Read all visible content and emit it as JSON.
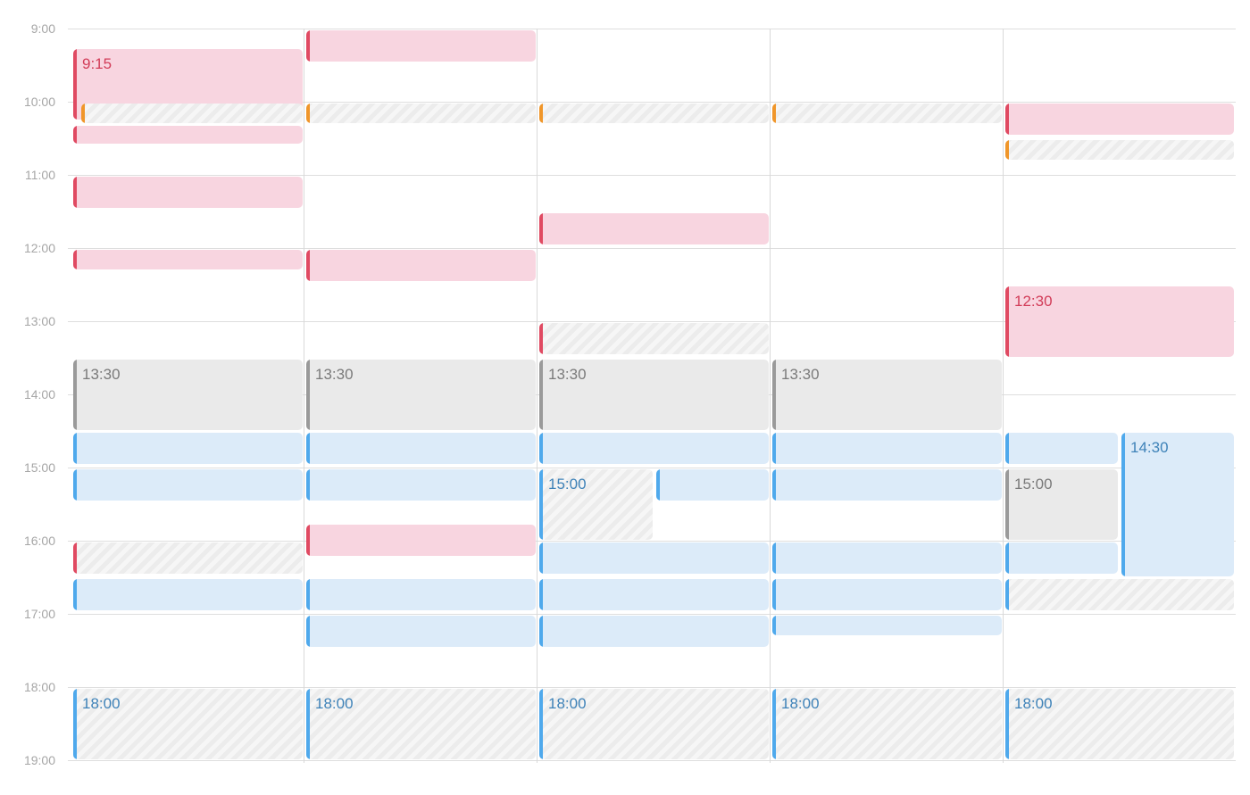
{
  "theme": {
    "pink_fill": "#f8d5e0",
    "pink_bar": "#e04a62",
    "pink_text": "#d23c58",
    "blue_fill": "#dcebf9",
    "blue_bar": "#4fa9ec",
    "blue_text": "#3e82b8",
    "gray_fill": "#eaeaea",
    "gray_bar": "#9a9a9a",
    "gray_text": "#7a7a7a",
    "orange_bar": "#f0962a",
    "hatch_fill": "#f6f6f6"
  },
  "hours": [
    "9:00",
    "10:00",
    "11:00",
    "12:00",
    "13:00",
    "14:00",
    "15:00",
    "16:00",
    "17:00",
    "18:00",
    "19:00"
  ],
  "day_count": 5,
  "events": [
    {
      "day": 0,
      "start": "9:15",
      "end": "10:15",
      "style": "pink",
      "label": "9:15"
    },
    {
      "day": 0,
      "start": "10:00",
      "end": "10:18",
      "style": "hatch",
      "bar": "orange",
      "offset": 1
    },
    {
      "day": 0,
      "start": "10:18",
      "end": "10:35",
      "style": "pink"
    },
    {
      "day": 0,
      "start": "11:00",
      "end": "11:28",
      "style": "pink"
    },
    {
      "day": 0,
      "start": "12:00",
      "end": "12:18",
      "style": "pink"
    },
    {
      "day": 0,
      "start": "13:30",
      "end": "14:30",
      "style": "gray",
      "label": "13:30"
    },
    {
      "day": 0,
      "start": "14:30",
      "end": "14:58",
      "style": "blue"
    },
    {
      "day": 0,
      "start": "15:00",
      "end": "15:28",
      "style": "blue"
    },
    {
      "day": 0,
      "start": "16:00",
      "end": "16:28",
      "style": "hatch",
      "bar": "pink"
    },
    {
      "day": 0,
      "start": "16:30",
      "end": "16:58",
      "style": "blue"
    },
    {
      "day": 0,
      "start": "18:00",
      "end": "19:00",
      "style": "hatch",
      "bar": "blue",
      "label": "18:00",
      "text": "blue"
    },
    {
      "day": 1,
      "start": "9:00",
      "end": "9:28",
      "style": "pink"
    },
    {
      "day": 1,
      "start": "10:00",
      "end": "10:18",
      "style": "hatch",
      "bar": "orange"
    },
    {
      "day": 1,
      "start": "12:00",
      "end": "12:28",
      "style": "pink"
    },
    {
      "day": 1,
      "start": "13:30",
      "end": "14:30",
      "style": "gray",
      "label": "13:30"
    },
    {
      "day": 1,
      "start": "14:30",
      "end": "14:58",
      "style": "blue"
    },
    {
      "day": 1,
      "start": "15:00",
      "end": "15:28",
      "style": "blue"
    },
    {
      "day": 1,
      "start": "15:45",
      "end": "16:13",
      "style": "pink"
    },
    {
      "day": 1,
      "start": "16:30",
      "end": "16:58",
      "style": "blue"
    },
    {
      "day": 1,
      "start": "17:00",
      "end": "17:28",
      "style": "blue"
    },
    {
      "day": 1,
      "start": "18:00",
      "end": "19:00",
      "style": "hatch",
      "bar": "blue",
      "label": "18:00",
      "text": "blue"
    },
    {
      "day": 2,
      "start": "10:00",
      "end": "10:18",
      "style": "hatch",
      "bar": "orange"
    },
    {
      "day": 2,
      "start": "11:30",
      "end": "11:58",
      "style": "pink"
    },
    {
      "day": 2,
      "start": "13:00",
      "end": "13:28",
      "style": "hatch",
      "bar": "pink"
    },
    {
      "day": 2,
      "start": "13:30",
      "end": "14:30",
      "style": "gray",
      "label": "13:30"
    },
    {
      "day": 2,
      "start": "14:30",
      "end": "14:58",
      "style": "blue"
    },
    {
      "day": 2,
      "start": "15:00",
      "end": "16:00",
      "style": "hatch",
      "bar": "blue",
      "label": "15:00",
      "text": "blue",
      "half": "left"
    },
    {
      "day": 2,
      "start": "15:00",
      "end": "15:28",
      "style": "blue",
      "half": "right"
    },
    {
      "day": 2,
      "start": "16:00",
      "end": "16:28",
      "style": "blue"
    },
    {
      "day": 2,
      "start": "16:30",
      "end": "16:58",
      "style": "blue"
    },
    {
      "day": 2,
      "start": "17:00",
      "end": "17:28",
      "style": "blue"
    },
    {
      "day": 2,
      "start": "18:00",
      "end": "19:00",
      "style": "hatch",
      "bar": "blue",
      "label": "18:00",
      "text": "blue"
    },
    {
      "day": 3,
      "start": "10:00",
      "end": "10:18",
      "style": "hatch",
      "bar": "orange"
    },
    {
      "day": 3,
      "start": "13:30",
      "end": "14:30",
      "style": "gray",
      "label": "13:30"
    },
    {
      "day": 3,
      "start": "14:30",
      "end": "14:58",
      "style": "blue"
    },
    {
      "day": 3,
      "start": "15:00",
      "end": "15:28",
      "style": "blue"
    },
    {
      "day": 3,
      "start": "16:00",
      "end": "16:28",
      "style": "blue"
    },
    {
      "day": 3,
      "start": "16:30",
      "end": "16:58",
      "style": "blue"
    },
    {
      "day": 3,
      "start": "17:00",
      "end": "17:18",
      "style": "blue"
    },
    {
      "day": 3,
      "start": "18:00",
      "end": "19:00",
      "style": "hatch",
      "bar": "blue",
      "label": "18:00",
      "text": "blue"
    },
    {
      "day": 4,
      "start": "10:00",
      "end": "10:28",
      "style": "pink"
    },
    {
      "day": 4,
      "start": "10:30",
      "end": "10:48",
      "style": "hatch",
      "bar": "orange"
    },
    {
      "day": 4,
      "start": "12:30",
      "end": "13:30",
      "style": "pink",
      "label": "12:30"
    },
    {
      "day": 4,
      "start": "14:30",
      "end": "14:58",
      "style": "blue",
      "half": "left"
    },
    {
      "day": 4,
      "start": "14:30",
      "end": "16:30",
      "style": "blue",
      "label": "14:30",
      "half": "right"
    },
    {
      "day": 4,
      "start": "15:00",
      "end": "16:00",
      "style": "gray",
      "label": "15:00",
      "half": "left"
    },
    {
      "day": 4,
      "start": "16:00",
      "end": "16:28",
      "style": "blue",
      "half": "left"
    },
    {
      "day": 4,
      "start": "16:30",
      "end": "16:58",
      "style": "hatch",
      "bar": "blue"
    },
    {
      "day": 4,
      "start": "18:00",
      "end": "19:00",
      "style": "hatch",
      "bar": "blue",
      "label": "18:00",
      "text": "blue"
    }
  ]
}
